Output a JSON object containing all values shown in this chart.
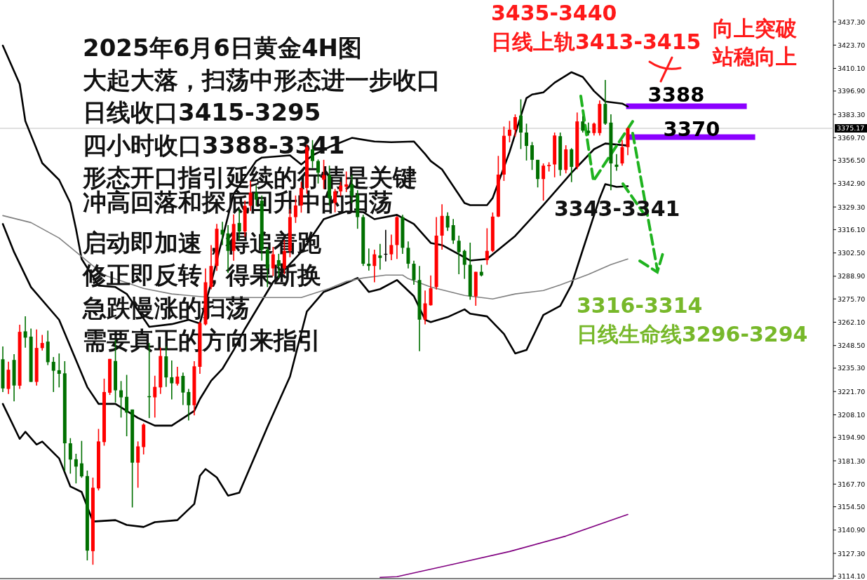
{
  "chart_data": {
    "type": "candlestick",
    "title": "2025年6月6日黄金4H图",
    "annotations": [
      "大起大落，扫荡中形态进一步收口",
      "日线收口3415-3295",
      "四小时收口3388-3341",
      "形态开口指引延续的行情是关键",
      "冲高回落和探底回升中的扫荡",
      "启动即加速，得追着跑",
      "修正即反转，得果断换",
      "急跌慢涨的扫荡",
      "需要真正的方向来指引",
      "3435-3440",
      "日线上轨3413-3415",
      "向上突破",
      "站稳向上",
      "3343-3341",
      "3316-3314",
      "日线生命线3296-3294"
    ],
    "categories": [
      null,
      null,
      null,
      null,
      null,
      null,
      null,
      null,
      null,
      null,
      null,
      null,
      null,
      null,
      null,
      null,
      null,
      null,
      null,
      null,
      null,
      null,
      null,
      null,
      null,
      null,
      null,
      null,
      null,
      null,
      null,
      null,
      null,
      null,
      null,
      null,
      null,
      null,
      null,
      null,
      null,
      null,
      null,
      null,
      null,
      null,
      null,
      null,
      null,
      null,
      null,
      null,
      null,
      null,
      null,
      null,
      null,
      null,
      null,
      null,
      null,
      null,
      null,
      null,
      null,
      null,
      null,
      null,
      null,
      null,
      null,
      null,
      null,
      null,
      null,
      null,
      null,
      null,
      null,
      null,
      null,
      null,
      null,
      null,
      null,
      null,
      null,
      null,
      null,
      null,
      null,
      null,
      null,
      null,
      null,
      null,
      null,
      null,
      null,
      null,
      null,
      null,
      null,
      null,
      null,
      null,
      null,
      null,
      null,
      null,
      null,
      null,
      null,
      null,
      null,
      null,
      null,
      null,
      null,
      null,
      null,
      null,
      null,
      null,
      null,
      null,
      null,
      null,
      null,
      null,
      null,
      null,
      null,
      null,
      null,
      null,
      null,
      null,
      null,
      null,
      null,
      null,
      null,
      null,
      null,
      null,
      null,
      null
    ],
    "ohlc": [
      [
        3240.5,
        3248.0,
        3221.4,
        3223.5
      ],
      [
        3223.2,
        3239.1,
        3220.3,
        3234.4
      ],
      [
        3240.1,
        3243.5,
        3216.0,
        3225.2
      ],
      [
        3225.1,
        3260.6,
        3223.2,
        3256.5
      ],
      [
        3256.8,
        3265.6,
        3247.3,
        3253.1
      ],
      [
        3253.7,
        3258.4,
        3227.3,
        3227.3
      ],
      [
        3227.3,
        3257.9,
        3225.2,
        3247.1
      ],
      [
        3247.0,
        3254.7,
        3245.6,
        3250.0
      ],
      [
        3250.8,
        3257.2,
        3237.1,
        3238.8
      ],
      [
        3239.0,
        3241.8,
        3221.4,
        3233.8
      ],
      [
        3234.1,
        3243.9,
        3224.1,
        3232.0
      ],
      [
        3232.3,
        3239.4,
        3175.2,
        3191.5
      ],
      [
        3191.5,
        3194.5,
        3173.8,
        3182.0
      ],
      [
        3182.2,
        3185.4,
        3168.1,
        3177.9
      ],
      [
        3179.8,
        3192.9,
        3171.4,
        3172.2
      ],
      [
        3172.4,
        3175.6,
        3123.2,
        3128.9
      ],
      [
        3128.6,
        3171.5,
        3120.7,
        3165.6
      ],
      [
        3165.2,
        3199.9,
        3164.0,
        3192.6
      ],
      [
        3192.2,
        3229.2,
        3190.1,
        3221.4
      ],
      [
        3221.0,
        3240.7,
        3219.7,
        3240.7
      ],
      [
        3239.5,
        3252.0,
        3215.3,
        3222.4
      ],
      [
        3222.4,
        3227.8,
        3206.5,
        3218.3
      ],
      [
        3218.6,
        3231.4,
        3195.6,
        3209.4
      ],
      [
        3211.2,
        3211.2,
        3154.1,
        3180.2
      ],
      [
        3180.2,
        3192.6,
        3165.6,
        3189.7
      ],
      [
        3189.3,
        3203.1,
        3185.0,
        3202.4
      ],
      [
        3219.0,
        3250.0,
        3206.2,
        3218.4
      ],
      [
        3218.3,
        3230.9,
        3206.5,
        3224.4
      ],
      [
        3224.1,
        3247.3,
        3220.3,
        3242.4
      ],
      [
        3242.2,
        3248.0,
        3224.4,
        3229.9
      ],
      [
        3230.0,
        3239.8,
        3217.1,
        3226.5
      ],
      [
        3226.2,
        3236.1,
        3225.2,
        3230.4
      ],
      [
        3230.8,
        3232.7,
        3213.8,
        3221.1
      ],
      [
        3221.4,
        3223.2,
        3204.8,
        3213.7
      ],
      [
        3213.7,
        3239.4,
        3207.8,
        3236.4
      ],
      [
        3236.1,
        3262.5,
        3232.0,
        3261.6
      ],
      [
        3260.9,
        3293.5,
        3260.2,
        3285.4
      ],
      [
        3282.6,
        3307.1,
        3281.3,
        3294.9
      ],
      [
        3294.9,
        3319.4,
        3292.0,
        3316.6
      ],
      [
        3316.0,
        3320.7,
        3307.1,
        3313.2
      ],
      [
        3313.9,
        3318.7,
        3290.8,
        3303.7
      ],
      [
        3303.7,
        3325.0,
        3298.0,
        3319.4
      ],
      [
        3320.0,
        3328.0,
        3310.0,
        3315.0
      ],
      [
        3315.0,
        3333.0,
        3312.0,
        3330.0
      ],
      [
        3330.0,
        3344.5,
        3327.0,
        3337.7
      ],
      [
        3337.7,
        3342.0,
        3330.0,
        3333.6
      ],
      [
        3333.0,
        3336.0,
        3298.0,
        3304.4
      ],
      [
        3304.4,
        3306.0,
        3282.6,
        3293.5
      ],
      [
        3293.5,
        3306.0,
        3289.0,
        3301.7
      ],
      [
        3298.3,
        3302.0,
        3288.0,
        3294.9
      ],
      [
        3293.5,
        3310.0,
        3290.0,
        3303.7
      ],
      [
        3303.7,
        3328.0,
        3300.0,
        3323.4
      ],
      [
        3323.4,
        3336.0,
        3320.0,
        3330.2
      ],
      [
        3330.2,
        3344.0,
        3326.0,
        3340.4
      ],
      [
        3340.4,
        3365.6,
        3337.0,
        3364.2
      ],
      [
        3362.9,
        3368.3,
        3352.0,
        3356.1
      ],
      [
        3356.1,
        3357.0,
        3343.0,
        3349.3
      ],
      [
        3345.2,
        3356.8,
        3339.8,
        3347.9
      ],
      [
        3347.9,
        3353.4,
        3330.2,
        3334.3
      ],
      [
        3331.6,
        3339.8,
        3326.2,
        3338.4
      ],
      [
        3338.4,
        3343.9,
        3335.7,
        3341.8
      ],
      [
        3341.1,
        3350.0,
        3338.0,
        3342.5
      ],
      [
        3342.5,
        3347.9,
        3331.6,
        3335.7
      ],
      [
        3336.4,
        3339.1,
        3316.6,
        3323.4
      ],
      [
        3323.4,
        3324.8,
        3294.9,
        3296.2
      ],
      [
        3296.2,
        3305.1,
        3292.2,
        3294.9
      ],
      [
        3294.9,
        3304.4,
        3285.4,
        3301.7
      ],
      [
        3301.0,
        3307.8,
        3292.8,
        3299.6
      ],
      [
        3302.0,
        3316.0,
        3297.6,
        3301.9
      ],
      [
        3301.7,
        3313.2,
        3298.3,
        3307.1
      ],
      [
        3307.1,
        3324.0,
        3299.0,
        3323.4
      ],
      [
        3323.4,
        3324.8,
        3302.0,
        3305.5
      ],
      [
        3305.5,
        3309.2,
        3293.5,
        3296.2
      ],
      [
        3296.2,
        3298.0,
        3284.0,
        3286.7
      ],
      [
        3286.7,
        3294.9,
        3245.2,
        3263.6
      ],
      [
        3263.6,
        3280.6,
        3260.9,
        3273.1
      ],
      [
        3272.0,
        3289.4,
        3271.8,
        3281.9
      ],
      [
        3282.6,
        3323.4,
        3281.2,
        3312.6
      ],
      [
        3312.6,
        3330.9,
        3304.4,
        3324.1
      ],
      [
        3324.1,
        3326.2,
        3315.3,
        3317.3
      ],
      [
        3318.7,
        3322.3,
        3307.8,
        3309.8
      ],
      [
        3309.6,
        3312.6,
        3290.1,
        3303.0
      ],
      [
        3303.7,
        3304.4,
        3287.4,
        3295.6
      ],
      [
        3295.6,
        3308.5,
        3275.2,
        3277.2
      ],
      [
        3277.2,
        3291.5,
        3271.7,
        3291.5
      ],
      [
        3291.5,
        3295.6,
        3288.8,
        3289.4
      ],
      [
        3298.3,
        3316.9,
        3295.6,
        3303.7
      ],
      [
        3303.7,
        3326.1,
        3303.0,
        3323.7
      ],
      [
        3323.7,
        3359.1,
        3323.4,
        3348.2
      ],
      [
        3348.2,
        3376.2,
        3344.5,
        3370.8
      ],
      [
        3370.8,
        3379.5,
        3367.0,
        3374.4
      ],
      [
        3374.4,
        3383.3,
        3370.4,
        3381.7
      ],
      [
        3382.6,
        3392.1,
        3363.1,
        3372.7
      ],
      [
        3372.7,
        3377.9,
        3356.4,
        3364.9
      ],
      [
        3365.3,
        3367.2,
        3350.9,
        3356.8
      ],
      [
        3356.8,
        3356.8,
        3340.7,
        3345.6
      ],
      [
        3345.6,
        3354.7,
        3333.0,
        3353.4
      ],
      [
        3353.1,
        3355.4,
        3350.0,
        3353.8
      ],
      [
        3354.1,
        3372.7,
        3346.6,
        3371.0
      ],
      [
        3370.6,
        3372.7,
        3347.5,
        3350.9
      ],
      [
        3350.9,
        3365.3,
        3348.9,
        3362.9
      ],
      [
        3362.9,
        3363.6,
        3343.8,
        3352.7
      ],
      [
        3352.7,
        3384.4,
        3351.3,
        3379.2
      ],
      [
        3379.2,
        3382.2,
        3372.7,
        3373.8
      ],
      [
        3373.8,
        3378.5,
        3371.0,
        3372.4
      ],
      [
        3372.4,
        3378.5,
        3371.0,
        3377.9
      ],
      [
        3372.4,
        3391.4,
        3371.0,
        3389.4
      ],
      [
        3389.4,
        3403.4,
        3377.2,
        3377.9
      ],
      [
        3378.5,
        3383.3,
        3339.1,
        3354.7
      ],
      [
        3354.0,
        3360.1,
        3350.4,
        3352.7
      ],
      [
        3354.7,
        3368.3,
        3353.4,
        3364.2
      ],
      [
        3364.2,
        3375.8,
        3359.5,
        3375.2
      ],
      null,
      null,
      null,
      null,
      null,
      null,
      null,
      null,
      null,
      null,
      null,
      null,
      null,
      null,
      null,
      null,
      null,
      null,
      null,
      null,
      null,
      null,
      null,
      null,
      null,
      null,
      null,
      null,
      null,
      null,
      null,
      null,
      null,
      null,
      null,
      null
    ],
    "colors": [
      "#007000",
      "#ff0000",
      "#007000",
      "#ff0000",
      "#007000",
      "#007000",
      "#ff0000",
      "#ff0000",
      "#007000",
      "#007000",
      "#007000",
      "#007000",
      "#007000",
      "#007000",
      "#007000",
      "#007000",
      "#ff0000",
      "#ff0000",
      "#ff0000",
      "#ff0000",
      "#007000",
      "#007000",
      "#007000",
      "#007000",
      "#ff0000",
      "#ff0000",
      "#007000",
      "#ff0000",
      "#ff0000",
      "#007000",
      "#007000",
      "#ff0000",
      "#007000",
      "#007000",
      "#ff0000",
      "#ff0000",
      "#ff0000",
      "#ff0000",
      "#ff0000",
      "#007000",
      "#007000",
      "#ff0000",
      "#007000",
      "#ff0000",
      "#ff0000",
      "#007000",
      "#007000",
      "#007000",
      "#ff0000",
      "#007000",
      "#ff0000",
      "#ff0000",
      "#ff0000",
      "#ff0000",
      "#ff0000",
      "#007000",
      "#007000",
      "#ff0000",
      "#007000",
      "#ff0000",
      "#ff0000",
      "#ff0000",
      "#007000",
      "#007000",
      "#007000",
      "#007000",
      "#ff0000",
      "#007000",
      "#000000",
      "#ff0000",
      "#ff0000",
      "#007000",
      "#007000",
      "#007000",
      "#007000",
      "#ff0000",
      "#ff0000",
      "#ff0000",
      "#ff0000",
      "#007000",
      "#007000",
      "#007000",
      "#007000",
      "#007000",
      "#ff0000",
      "#007000",
      "#ff0000",
      "#ff0000",
      "#ff0000",
      "#ff0000",
      "#ff0000",
      "#ff0000",
      "#007000",
      "#007000",
      "#007000",
      "#007000",
      "#ff0000",
      "#ff0000",
      "#ff0000",
      "#007000",
      "#ff0000",
      "#007000",
      "#ff0000",
      "#007000",
      "#007000",
      "#ff0000",
      "#ff0000",
      "#007000",
      "#007000",
      "#007000",
      "#ff0000",
      "#ff0000",
      null,
      null,
      null,
      null,
      null,
      null,
      null,
      null,
      null,
      null,
      null,
      null,
      null,
      null,
      null,
      null,
      null,
      null,
      null,
      null,
      null,
      null,
      null,
      null,
      null,
      null,
      null,
      null,
      null,
      null,
      null,
      null,
      null,
      null,
      null,
      null
    ],
    "series": [
      {
        "type": "line",
        "color": "#000000",
        "values": [
          3423.4,
          null,
          null,
          3401.0,
          3379.4,
          null,
          null,
          3354.9,
          null,
          null,
          3345.1,
          null,
          3331.6,
          3316.5,
          3299.0,
          null,
          null,
          3283.5,
          null,
          null,
          3282.6,
          null,
          3278.6,
          null,
          null,
          null,
          3259.4,
          null,
          null,
          null,
          3261.0,
          null,
          null,
          3263.5,
          null,
          3261.4,
          null,
          3285.0,
          null,
          null,
          null,
          3336.9,
          null,
          null,
          null,
          3356.1,
          3358.1,
          null,
          null,
          null,
          null,
          3359.4,
          null,
          3354.1,
          null,
          3359.4,
          null,
          null,
          3364.3,
          null,
          null,
          null,
          3369.6,
          null,
          null,
          null,
          3367.5,
          null,
          null,
          3367.1,
          null,
          null,
          null,
          3367.5,
          null,
          3360.2,
          3356.1,
          null,
          3351.2,
          null,
          null,
          null,
          3331.6,
          3330.4,
          null,
          null,
          3330.4,
          3334.5,
          null,
          null,
          3361.4,
          null,
          null,
          3392.8,
          3394.9,
          null,
          3396.1,
          null,
          3401.8,
          null,
          null,
          3407.9,
          null,
          3405.1,
          null,
          3396.9,
          null,
          3390.8,
          null,
          null,
          3389.6,
          3387.9,
          null,
          null,
          null,
          null,
          null,
          null,
          null,
          null,
          null,
          null,
          null,
          null,
          null,
          null,
          null,
          null,
          null,
          null,
          null,
          null,
          null,
          null,
          null,
          null,
          null,
          null,
          null,
          null,
          null,
          null,
          null,
          null,
          null,
          null,
          null,
          null
        ]
      },
      {
        "type": "line",
        "color": "#000000",
        "values": [
          3319.4,
          null,
          3303.0,
          null,
          null,
          3282.6,
          null,
          null,
          null,
          null,
          3263.5,
          null,
          null,
          null,
          null,
          3224.3,
          null,
          3214.5,
          null,
          null,
          3214.5,
          null,
          null,
          null,
          3206.3,
          null,
          null,
          3201.8,
          null,
          null,
          3201.8,
          null,
          null,
          null,
          3210.4,
          3217.3,
          null,
          3228.0,
          null,
          3234.9,
          null,
          3245.9,
          null,
          3258.2,
          null,
          null,
          null,
          null,
          3285.5,
          null,
          null,
          null,
          null,
          3303.0,
          null,
          null,
          null,
          3322.2,
          null,
          null,
          null,
          3326.7,
          null,
          null,
          3326.3,
          null,
          3322.2,
          null,
          null,
          null,
          3324.7,
          null,
          null,
          3319.4,
          null,
          null,
          3308.3,
          null,
          3307.1,
          null,
          null,
          null,
          null,
          3298.1,
          null,
          null,
          3299.0,
          null,
          null,
          null,
          null,
          3312.4,
          null,
          null,
          null,
          null,
          3330.4,
          null,
          null,
          null,
          null,
          3349.2,
          null,
          null,
          null,
          3363.0,
          null,
          3366.3,
          null,
          null,
          null,
          3365.1,
          null,
          null,
          null,
          null,
          null,
          null,
          null,
          null,
          null,
          null,
          null,
          null,
          null,
          null,
          null,
          null,
          null,
          null,
          null,
          null,
          null,
          null,
          null,
          null,
          null,
          null,
          null,
          null,
          null,
          null,
          null,
          null,
          null,
          null,
          null,
          null
        ]
      },
      {
        "type": "line",
        "color": "#000000",
        "values": [
          3214.5,
          null,
          null,
          3194.1,
          3198.2,
          null,
          3190.8,
          3192.5,
          null,
          null,
          3182.7,
          null,
          3166.3,
          null,
          3163.1,
          null,
          3145.9,
          null,
          null,
          null,
          3146.7,
          null,
          3143.9,
          null,
          null,
          3142.7,
          null,
          3145.5,
          null,
          null,
          null,
          3146.7,
          null,
          null,
          3156.1,
          3172.5,
          3176.5,
          null,
          3171.6,
          null,
          3161.0,
          null,
          3162.7,
          null,
          null,
          null,
          null,
          3201.0,
          null,
          null,
          null,
          3230.4,
          null,
          null,
          3268.4,
          null,
          null,
          3279.8,
          null,
          null,
          3283.5,
          null,
          null,
          3287.9,
          null,
          3279.8,
          null,
          3281.4,
          null,
          null,
          3286.7,
          null,
          null,
          3277.3,
          null,
          3263.5,
          3262.2,
          null,
          null,
          3265.1,
          null,
          null,
          3269.6,
          3267.1,
          null,
          null,
          3265.5,
          null,
          null,
          3255.3,
          null,
          3243.9,
          null,
          3245.9,
          null,
          null,
          3266.3,
          null,
          null,
          3271.6,
          null,
          3283.9,
          null,
          3304.3,
          null,
          null,
          3334.5,
          3342.6,
          null,
          3341.0,
          null,
          3341.4,
          null,
          null,
          null,
          null,
          null,
          null,
          null,
          null,
          null,
          null,
          null,
          null,
          null,
          null,
          null,
          null,
          null,
          null,
          null,
          null,
          null,
          null,
          null,
          null,
          null,
          null,
          null,
          null,
          null,
          null,
          null,
          null,
          null,
          null,
          null,
          null
        ]
      },
      {
        "type": "line",
        "color": "#808080",
        "values": [
          3324.3,
          null,
          null,
          null,
          null,
          3320.2,
          null,
          null,
          null,
          null,
          3311.2,
          null,
          null,
          null,
          null,
          3297.7,
          null,
          null,
          3289.6,
          null,
          null,
          null,
          null,
          null,
          null,
          3281.8,
          null,
          null,
          null,
          null,
          3278.6,
          null,
          null,
          null,
          null,
          null,
          null,
          3276.5,
          null,
          null,
          null,
          null,
          null,
          null,
          null,
          3276.5,
          null,
          null,
          null,
          null,
          null,
          null,
          null,
          3276.5,
          null,
          null,
          null,
          null,
          3281.8,
          null,
          null,
          3285.9,
          null,
          null,
          3287.9,
          null,
          null,
          null,
          3289.6,
          null,
          null,
          3289.6,
          3287.5,
          null,
          null,
          null,
          3282.6,
          null,
          null,
          null,
          null,
          null,
          3277.7,
          null,
          null,
          null,
          null,
          3275.7,
          null,
          null,
          null,
          3278.6,
          null,
          null,
          null,
          null,
          3280.6,
          null,
          null,
          3283.9,
          null,
          null,
          null,
          null,
          3290.0,
          null,
          null,
          null,
          3295.7,
          null,
          null,
          3299.0,
          null,
          null,
          null,
          null,
          null,
          null,
          null,
          null,
          null,
          null,
          null,
          null,
          null,
          null,
          null,
          null,
          null,
          null,
          null,
          null,
          null,
          null,
          null,
          null,
          null,
          null,
          null,
          null,
          null,
          null,
          null,
          null,
          null,
          null,
          null,
          null
        ]
      },
      {
        "type": "line",
        "color": "#800080",
        "values": [
          null,
          null,
          null,
          null,
          null,
          null,
          null,
          null,
          null,
          null,
          null,
          null,
          null,
          null,
          null,
          null,
          null,
          null,
          null,
          null,
          null,
          null,
          null,
          null,
          null,
          null,
          null,
          null,
          null,
          null,
          null,
          null,
          null,
          null,
          null,
          null,
          null,
          null,
          null,
          null,
          null,
          null,
          null,
          null,
          null,
          null,
          null,
          null,
          null,
          null,
          null,
          null,
          null,
          null,
          null,
          null,
          null,
          null,
          null,
          null,
          null,
          null,
          null,
          null,
          null,
          null,
          null,
          3113.3,
          null,
          null,
          3113.7,
          null,
          null,
          null,
          null,
          null,
          null,
          null,
          null,
          null,
          3121.0,
          null,
          null,
          null,
          null,
          null,
          null,
          null,
          null,
          null,
          3128.4,
          null,
          null,
          null,
          null,
          null,
          null,
          null,
          null,
          null,
          3137.4,
          null,
          null,
          null,
          null,
          null,
          null,
          null,
          null,
          null,
          null,
          3150.0,
          null,
          null,
          null,
          null,
          null,
          null,
          null,
          null,
          null,
          null,
          null,
          null,
          null,
          null,
          null,
          null,
          null,
          null,
          null,
          null,
          null,
          null,
          null,
          null,
          null,
          null,
          null,
          null,
          null,
          null,
          null,
          null,
          null,
          null,
          null,
          null
        ]
      }
    ],
    "ref_lines": [
      {
        "axis": "y",
        "value": 3375.17,
        "label": "3375.17",
        "color": "#c0c0c0"
      },
      {
        "axis": "y",
        "value": 3388,
        "label": "3388",
        "color": "#8b00ff"
      },
      {
        "axis": "y",
        "value": 3370,
        "label": "3370",
        "color": "#8b00ff"
      }
    ],
    "ylim": [
      3112.6,
      3450
    ],
    "yticks": [
      {
        "value": 3114.1,
        "label": "3114.10"
      },
      {
        "value": 3127.3,
        "label": "3127.30"
      },
      {
        "value": 3140.9,
        "label": "3140.90"
      },
      {
        "value": 3154.5,
        "label": "3154.50"
      },
      {
        "value": 3167.7,
        "label": "3167.70"
      },
      {
        "value": 3181.3,
        "label": "3181.30"
      },
      {
        "value": 3194.9,
        "label": "3194.90"
      },
      {
        "value": 3208.1,
        "label": "3208.10"
      },
      {
        "value": 3221.7,
        "label": "3221.70"
      },
      {
        "value": 3235.3,
        "label": "3235.30"
      },
      {
        "value": 3248.5,
        "label": "3248.50"
      },
      {
        "value": 3262.1,
        "label": "3262.10"
      },
      {
        "value": 3275.7,
        "label": "3275.70"
      },
      {
        "value": 3288.9,
        "label": "3288.90"
      },
      {
        "value": 3302.5,
        "label": "3302.50"
      },
      {
        "value": 3316.1,
        "label": "3316.10"
      },
      {
        "value": 3329.3,
        "label": "3329.30"
      },
      {
        "value": 3342.9,
        "label": "3342.90"
      },
      {
        "value": 3356.5,
        "label": "3356.50"
      },
      {
        "value": 3369.7,
        "label": "3369.70"
      },
      {
        "value": 3383.3,
        "label": "3383.30"
      },
      {
        "value": 3396.9,
        "label": "3396.90"
      },
      {
        "value": 3410.1,
        "label": "3410.10"
      },
      {
        "value": 3423.7,
        "label": "3423.70"
      },
      {
        "value": 3437.3,
        "label": "3437.30"
      }
    ],
    "tick_labels": "y"
  }
}
